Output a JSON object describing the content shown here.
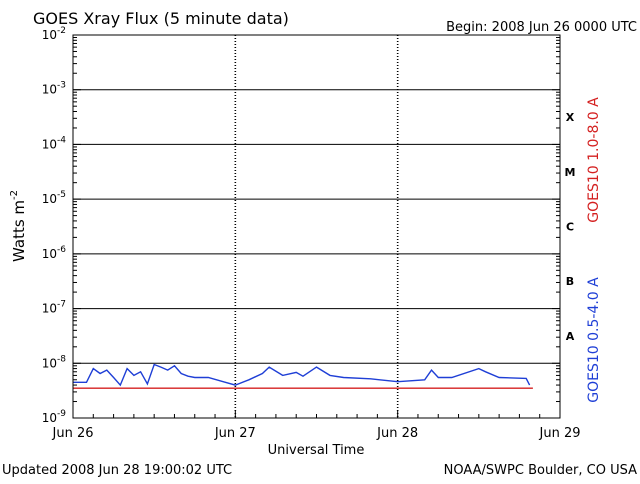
{
  "chart_data": {
    "type": "line",
    "title": "GOES Xray Flux (5 minute data)",
    "begin_label": "Begin:  2008 Jun 26 0000 UTC",
    "xlabel": "Universal Time",
    "ylabel": "Watts m",
    "ylabel_superscript": "-2",
    "y_scale": "log",
    "ylim": [
      1e-09,
      0.01
    ],
    "xlim": [
      "2008-06-26 00:00",
      "2008-06-29 00:00"
    ],
    "x_ticks": [
      "Jun 26",
      "Jun 27",
      "Jun 28",
      "Jun 29"
    ],
    "y_ticks": [
      {
        "base": "10",
        "exp": "-2"
      },
      {
        "base": "10",
        "exp": "-3"
      },
      {
        "base": "10",
        "exp": "-4"
      },
      {
        "base": "10",
        "exp": "-5"
      },
      {
        "base": "10",
        "exp": "-6"
      },
      {
        "base": "10",
        "exp": "-7"
      },
      {
        "base": "10",
        "exp": "-8"
      },
      {
        "base": "10",
        "exp": "-9"
      }
    ],
    "flare_classes": [
      "X",
      "M",
      "C",
      "B",
      "A"
    ],
    "grid": "horizontal lines at each decade; dotted vertical lines at day boundaries",
    "series": [
      {
        "name": "GOES10 1.0-8.0 A",
        "color": "#d42020",
        "x": [
          "2008-06-26 00:00",
          "2008-06-28 20:00"
        ],
        "y": [
          3.5e-09,
          3.5e-09
        ]
      },
      {
        "name": "GOES10 0.5-4.0 A",
        "color": "#1f3fd6",
        "x": [
          "2008-06-26 00:00",
          "2008-06-26 02:00",
          "2008-06-26 03:00",
          "2008-06-26 04:00",
          "2008-06-26 05:00",
          "2008-06-26 06:00",
          "2008-06-26 07:00",
          "2008-06-26 08:00",
          "2008-06-26 09:00",
          "2008-06-26 10:00",
          "2008-06-26 11:00",
          "2008-06-26 12:00",
          "2008-06-26 13:00",
          "2008-06-26 14:00",
          "2008-06-26 15:00",
          "2008-06-26 16:00",
          "2008-06-26 17:00",
          "2008-06-26 18:00",
          "2008-06-26 20:00",
          "2008-06-27 00:00",
          "2008-06-27 02:00",
          "2008-06-27 04:00",
          "2008-06-27 05:00",
          "2008-06-27 07:00",
          "2008-06-27 09:00",
          "2008-06-27 10:00",
          "2008-06-27 12:00",
          "2008-06-27 14:00",
          "2008-06-27 16:00",
          "2008-06-27 20:00",
          "2008-06-28 00:00",
          "2008-06-28 04:00",
          "2008-06-28 05:00",
          "2008-06-28 06:00",
          "2008-06-28 08:00",
          "2008-06-28 12:00",
          "2008-06-28 13:00",
          "2008-06-28 15:00",
          "2008-06-28 19:00",
          "2008-06-28 19:30"
        ],
        "y": [
          4.5e-09,
          4.5e-09,
          8e-09,
          6.5e-09,
          7.5e-09,
          5.5e-09,
          4e-09,
          8e-09,
          6e-09,
          7e-09,
          4.2e-09,
          9.5e-09,
          8.5e-09,
          7.5e-09,
          9e-09,
          6.5e-09,
          5.8e-09,
          5.5e-09,
          5.5e-09,
          4e-09,
          5e-09,
          6.5e-09,
          8.5e-09,
          6e-09,
          6.8e-09,
          5.8e-09,
          8.5e-09,
          6e-09,
          5.5e-09,
          5.2e-09,
          4.6e-09,
          5e-09,
          7.5e-09,
          5.5e-09,
          5.5e-09,
          8e-09,
          7e-09,
          5.5e-09,
          5.3e-09,
          4e-09
        ]
      }
    ]
  },
  "footer": {
    "updated": "Updated 2008 Jun 28 19:00:02 UTC",
    "source": "NOAA/SWPC Boulder, CO USA"
  }
}
